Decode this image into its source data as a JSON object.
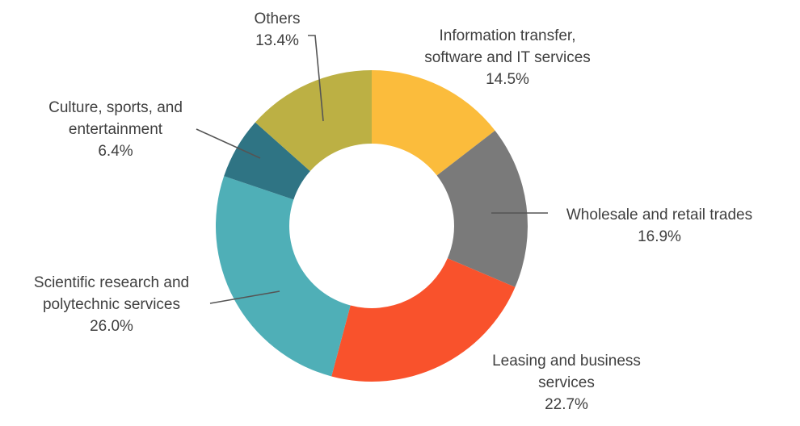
{
  "chart_data": {
    "type": "pie",
    "donut": true,
    "title": "",
    "slices": [
      {
        "label_lines": [
          "Information transfer,",
          "software and IT services"
        ],
        "value": 14.5,
        "value_label": "14.5%",
        "color": "#FBBC3C"
      },
      {
        "label_lines": [
          "Wholesale and retail trades"
        ],
        "value": 16.9,
        "value_label": "16.9%",
        "color": "#7A7A7A"
      },
      {
        "label_lines": [
          "Leasing and business",
          "services"
        ],
        "value": 22.7,
        "value_label": "22.7%",
        "color": "#F9522C"
      },
      {
        "label_lines": [
          "Scientific research and",
          "polytechnic services"
        ],
        "value": 26.0,
        "value_label": "26.0%",
        "color": "#4FAFB7"
      },
      {
        "label_lines": [
          "Culture, sports, and",
          "entertainment"
        ],
        "value": 6.4,
        "value_label": "6.4%",
        "color": "#2F7484"
      },
      {
        "label_lines": [
          "Others"
        ],
        "value": 13.4,
        "value_label": "13.4%",
        "color": "#BCB044"
      }
    ],
    "start_angle": "top",
    "direction": "clockwise",
    "legend": "none"
  }
}
